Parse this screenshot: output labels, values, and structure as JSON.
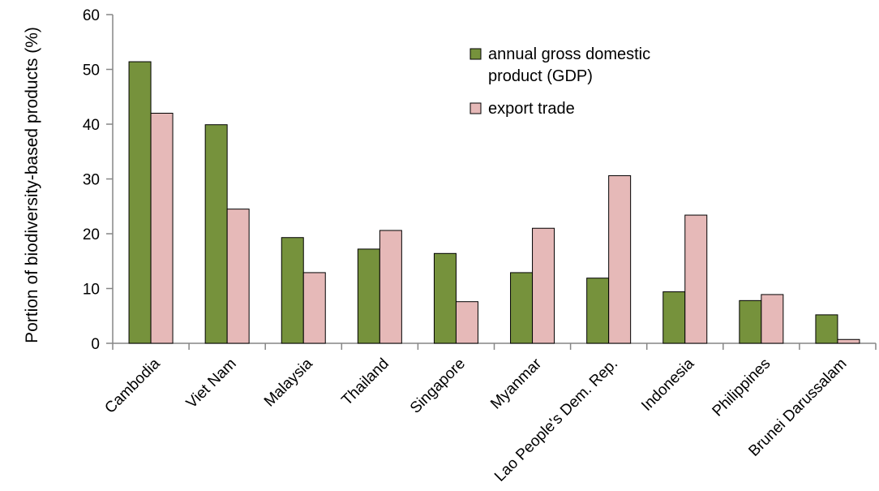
{
  "chart_data": {
    "type": "bar",
    "ylabel": "Portion of biodiversity-based  products (%)",
    "ylim": [
      0,
      60
    ],
    "yticks": [
      0,
      10,
      20,
      30,
      40,
      50,
      60
    ],
    "grid": false,
    "legend_position": "top-right",
    "categories": [
      "Cambodia",
      "Viet Nam",
      "Malaysia",
      "Thailand",
      "Singapore",
      "Myanmar",
      "Lao People's Dem. Rep.",
      "Indonesia",
      "Philippines",
      "Brunei Darussalam"
    ],
    "series": [
      {
        "name": "annual gross domestic product (GDP)",
        "legend_lines": [
          "annual gross domestic",
          "product (GDP)"
        ],
        "color": "#76923c",
        "values": [
          51.4,
          39.9,
          19.3,
          17.2,
          16.4,
          12.9,
          11.9,
          9.4,
          7.8,
          5.2
        ]
      },
      {
        "name": "export trade",
        "legend_lines": [
          "export trade"
        ],
        "color": "#e6b9b8",
        "values": [
          42.0,
          24.5,
          12.9,
          20.6,
          7.6,
          21.0,
          30.6,
          23.4,
          8.9,
          0.7
        ]
      }
    ]
  }
}
